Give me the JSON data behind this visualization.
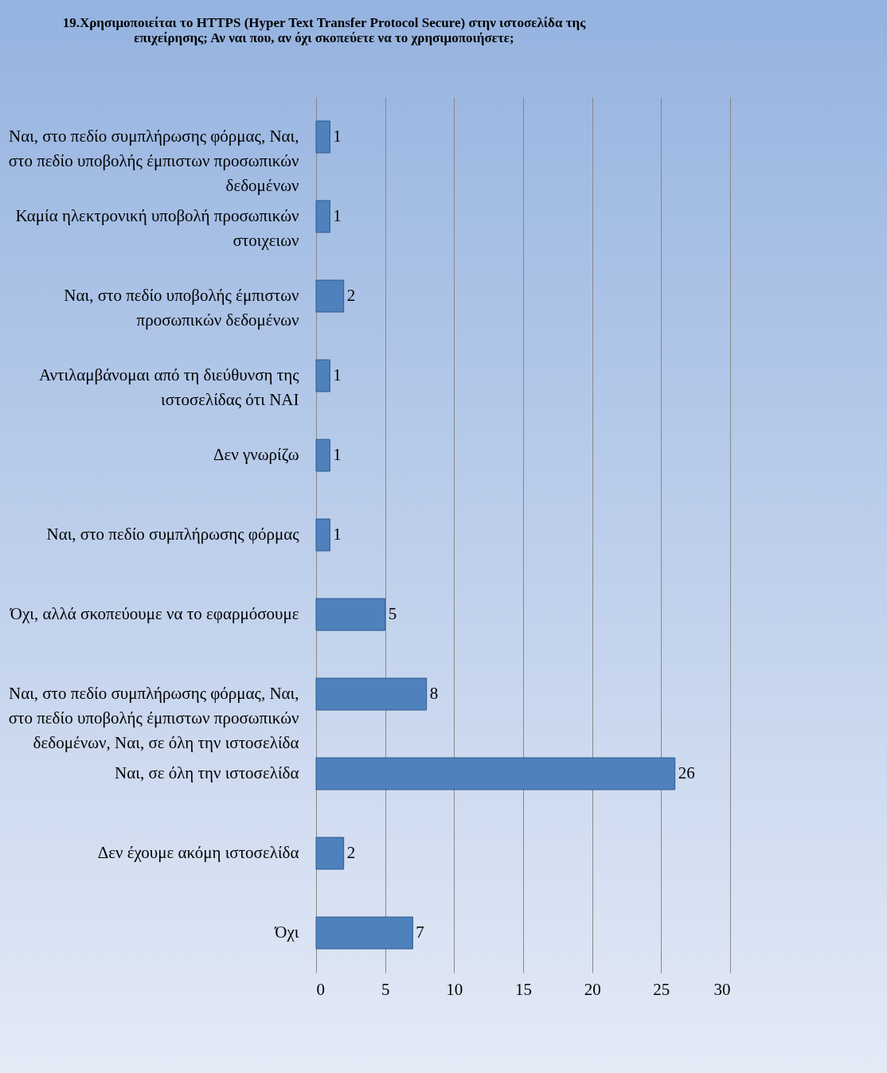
{
  "chart_data": {
    "type": "bar",
    "orientation": "horizontal",
    "title": "19.Χρησιμοποιείται το HTTPS (Hyper Text Transfer Protocol Secure) στην ιστοσελίδα της επιχείρησης; Αν ναι που, αν όχι σκοπεύετε να το χρησιμοποιήσετε;",
    "categories": [
      "Ναι, στο πεδίο συμπλήρωσης φόρμας, Ναι, στο πεδίο υποβολής έμπιστων προσωπικών δεδομένων",
      "Καμία ηλεκτρονική υποβολή προσωπικών στοιχειων",
      "Ναι, στο πεδίο υποβολής έμπιστων προσωπικών δεδομένων",
      "Αντιλαμβάνομαι από τη διεύθυνση της ιστοσελίδας ότι ΝΑΙ",
      "Δεν γνωρίζω",
      "Ναι, στο πεδίο συμπλήρωσης φόρμας",
      "Όχι, αλλά σκοπεύουμε να το εφαρμόσουμε",
      "Ναι, στο πεδίο συμπλήρωσης φόρμας, Ναι, στο πεδίο υποβολής έμπιστων προσωπικών δεδομένων, Ναι, σε όλη την ιστοσελίδα",
      "Ναι, σε όλη την ιστοσελίδα",
      "Δεν έχουμε ακόμη ιστοσελίδα",
      "Όχι"
    ],
    "values": [
      1,
      1,
      2,
      1,
      1,
      1,
      5,
      8,
      26,
      2,
      7
    ],
    "color": "#4f81bd",
    "xlim": [
      0,
      30
    ],
    "xticks": [
      0,
      5,
      10,
      15,
      20,
      25,
      30
    ],
    "grid": "x",
    "data_labels": true
  }
}
